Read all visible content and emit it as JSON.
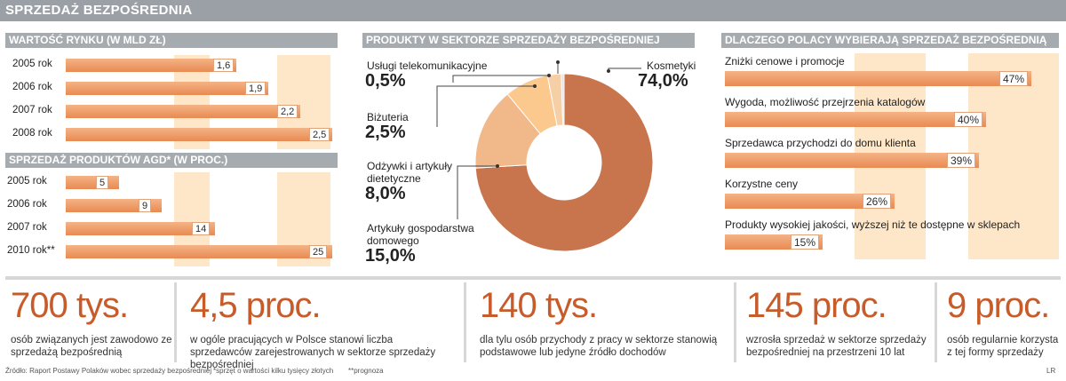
{
  "title": "SPRZEDAŻ BEZPOŚREDNIA",
  "colors": {
    "bar": "#e98a52",
    "donut_main": "#c8754e",
    "donut_light": "#fbc98e",
    "accent_text": "#c75b2a",
    "header": "#a6abb0"
  },
  "sections": {
    "market": "WARTOŚĆ RYNKU (W MLD ZŁ)",
    "agd": "SPRZEDAŻ PRODUKTÓW AGD* (W PROC.)",
    "products": "PRODUKTY W SEKTORZE SPRZEDAŻY BEZPOŚREDNIEJ",
    "why": "DLACZEGO POLACY WYBIERAJĄ SPRZEDAŻ BEZPOŚREDNIĄ"
  },
  "chart_data": [
    {
      "type": "bar",
      "title": "WARTOŚĆ RYNKU (W MLD ZŁ)",
      "categories": [
        "2005 rok",
        "2006 rok",
        "2007 rok",
        "2008 rok"
      ],
      "values": [
        1.6,
        1.9,
        2.2,
        2.5
      ],
      "value_labels": [
        "1,6",
        "1,9",
        "2,2",
        "2,5"
      ],
      "xlim": [
        0,
        2.5
      ]
    },
    {
      "type": "bar",
      "title": "SPRZEDAŻ PRODUKTÓW AGD* (W PROC.)",
      "categories": [
        "2005 rok",
        "2006 rok",
        "2007 rok",
        "2010 rok**"
      ],
      "values": [
        5,
        9,
        14,
        25
      ],
      "value_labels": [
        "5",
        "9",
        "14",
        "25"
      ],
      "xlim": [
        0,
        25
      ]
    },
    {
      "type": "pie",
      "title": "PRODUKTY W SEKTORZE SPRZEDAŻY BEZPOŚREDNIEJ",
      "slices": [
        {
          "label": "Kosmetyki",
          "value": 74.0,
          "value_label": "74,0%"
        },
        {
          "label": "Artykuły gospodarstwa domowego",
          "value": 15.0,
          "value_label": "15,0%"
        },
        {
          "label": "Odżywki i artykuły dietetyczne",
          "value": 8.0,
          "value_label": "8,0%"
        },
        {
          "label": "Biżuteria",
          "value": 2.5,
          "value_label": "2,5%"
        },
        {
          "label": "Usługi telekomunikacyjne",
          "value": 0.5,
          "value_label": "0,5%"
        }
      ]
    },
    {
      "type": "bar",
      "title": "DLACZEGO POLACY WYBIERAJĄ SPRZEDAŻ BEZPOŚREDNIĄ",
      "categories": [
        "Zniżki cenowe i promocje",
        "Wygoda, możliwość przejrzenia katalogów",
        "Sprzedawca przychodzi do domu klienta",
        "Korzystne ceny",
        "Produkty wysokiej jakości, wyższej niż te dostępne w sklepach"
      ],
      "values": [
        47,
        40,
        39,
        26,
        15
      ],
      "value_labels": [
        "47%",
        "40%",
        "39%",
        "26%",
        "15%"
      ],
      "xlim": [
        0,
        47
      ]
    }
  ],
  "labels": {
    "agd_rows": [
      "2005 rok",
      "2006 rok",
      "2007 rok",
      "2010 rok**"
    ],
    "donut": {
      "telecom_name": "Usługi telekomunikacyjne",
      "telecom_value": "0,5%",
      "jewelry_name": "Biżuteria",
      "jewelry_value": "2,5%",
      "diet_name_1": "Odżywki i artykuły",
      "diet_name_2": "dietetyczne",
      "diet_value": "8,0%",
      "home_name_1": "Artykuły gospodarstwa",
      "home_name_2": "domowego",
      "home_value": "15,0%",
      "cosmetics_name": "Kosmetyki",
      "cosmetics_value": "74,0%"
    }
  },
  "stats": [
    {
      "big": "700 tys.",
      "desc": "osób związanych jest zawodowo ze sprzedażą bezpośrednią"
    },
    {
      "big": "4,5 proc.",
      "desc": "w ogóle pracujących w Polsce stanowi liczba sprzedawców zarejestrowanych w sektorze sprzedaży bezpośredniej"
    },
    {
      "big": "140 tys.",
      "desc": "dla tylu osób przychody z pracy w sektorze stanowią podstawowe lub jedyne źródło dochodów"
    },
    {
      "big": "145 proc.",
      "desc": "wzrosła sprzedaż w sektorze sprzedaży bezpośredniej na przestrzeni 10 lat"
    },
    {
      "big": "9 proc.",
      "desc": "osób regularnie korzysta z tej formy sprzedaży"
    }
  ],
  "footnotes": {
    "source": "Źródło: Raport Postawy Polaków wobec sprzedaży bezpośredniej",
    "note1": "*sprzęt o wartości kilku tysięcy złotych",
    "note2": "**prognoza",
    "author": "LR"
  }
}
